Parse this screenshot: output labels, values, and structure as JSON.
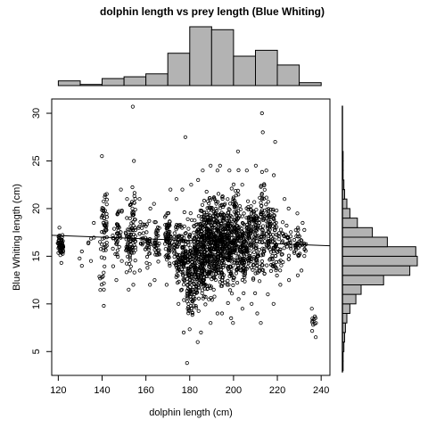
{
  "chart_data": {
    "type": "scatter",
    "title": "dolphin length vs prey length (Blue Whiting)",
    "xlabel": "dolphin length (cm)",
    "ylabel": "Blue Whiting length (cm)",
    "xlim": [
      117,
      244
    ],
    "ylim": [
      2.5,
      31.5
    ],
    "xticks": [
      120,
      140,
      160,
      180,
      200,
      220,
      240
    ],
    "yticks": [
      5,
      10,
      15,
      20,
      25,
      30
    ],
    "grid": false,
    "trend_line": {
      "x": [
        117,
        244
      ],
      "y": [
        17.2,
        16.1
      ]
    },
    "point_style": "open-circle",
    "point_clusters": [
      {
        "x": 121,
        "y_range": [
          14.3,
          18.0
        ],
        "n": 60
      },
      {
        "x": 130,
        "y_range": [
          14.0,
          15.5
        ],
        "n": 3
      },
      {
        "x": 135,
        "y_range": [
          14.5,
          18.5
        ],
        "n": 6
      },
      {
        "x": 140,
        "y_range": [
          9.8,
          18.5
        ],
        "n": 16
      },
      {
        "x": 141,
        "y_range": [
          11.5,
          25.5
        ],
        "n": 45
      },
      {
        "x": 146,
        "y_range": [
          12.5,
          19.5
        ],
        "n": 18
      },
      {
        "x": 148,
        "y_range": [
          14.5,
          22.0
        ],
        "n": 26
      },
      {
        "x": 152,
        "y_range": [
          11.5,
          21.0
        ],
        "n": 45
      },
      {
        "x": 154,
        "y_range": [
          12.0,
          25.0
        ],
        "n": 55
      },
      {
        "x": 158,
        "y_range": [
          13.5,
          21.0
        ],
        "n": 18
      },
      {
        "x": 161,
        "y_range": [
          12.0,
          20.0
        ],
        "n": 30
      },
      {
        "x": 165,
        "y_range": [
          12.5,
          20.5
        ],
        "n": 35
      },
      {
        "x": 170,
        "y_range": [
          12.0,
          22.0
        ],
        "n": 70
      },
      {
        "x": 174,
        "y_range": [
          10.0,
          21.0
        ],
        "n": 60
      },
      {
        "x": 177,
        "y_range": [
          7.0,
          22.0
        ],
        "n": 75
      },
      {
        "x": 180,
        "y_range": [
          3.8,
          22.5
        ],
        "n": 110
      },
      {
        "x": 183,
        "y_range": [
          6.0,
          23.0
        ],
        "n": 130
      },
      {
        "x": 186,
        "y_range": [
          7.0,
          24.0
        ],
        "n": 150
      },
      {
        "x": 189,
        "y_range": [
          8.0,
          24.5
        ],
        "n": 160
      },
      {
        "x": 192,
        "y_range": [
          9.0,
          24.0
        ],
        "n": 150
      },
      {
        "x": 195,
        "y_range": [
          9.0,
          24.5
        ],
        "n": 140
      },
      {
        "x": 198,
        "y_range": [
          8.5,
          24.0
        ],
        "n": 130
      },
      {
        "x": 201,
        "y_range": [
          8.0,
          26.0
        ],
        "n": 115
      },
      {
        "x": 204,
        "y_range": [
          9.5,
          22.5
        ],
        "n": 95
      },
      {
        "x": 207,
        "y_range": [
          10.0,
          24.0
        ],
        "n": 80
      },
      {
        "x": 210,
        "y_range": [
          9.0,
          24.5
        ],
        "n": 75
      },
      {
        "x": 213,
        "y_range": [
          8.0,
          28.0
        ],
        "n": 70
      },
      {
        "x": 216,
        "y_range": [
          11.0,
          24.0
        ],
        "n": 55
      },
      {
        "x": 219,
        "y_range": [
          10.0,
          23.5
        ],
        "n": 50
      },
      {
        "x": 222,
        "y_range": [
          12.0,
          21.0
        ],
        "n": 25
      },
      {
        "x": 225,
        "y_range": [
          12.5,
          20.0
        ],
        "n": 22
      },
      {
        "x": 229,
        "y_range": [
          13.0,
          19.5
        ],
        "n": 30
      },
      {
        "x": 232,
        "y_range": [
          13.5,
          18.5
        ],
        "n": 14
      },
      {
        "x": 237,
        "y_range": [
          6.5,
          9.5
        ],
        "n": 12
      }
    ],
    "outliers": [
      {
        "x": 154,
        "y": 30.7
      },
      {
        "x": 213,
        "y": 30.0
      },
      {
        "x": 178,
        "y": 27.5
      },
      {
        "x": 219,
        "y": 27.0
      }
    ],
    "top_histogram": {
      "bins": [
        [
          120,
          130
        ],
        [
          130,
          140
        ],
        [
          140,
          150
        ],
        [
          150,
          160
        ],
        [
          160,
          170
        ],
        [
          170,
          180
        ],
        [
          180,
          190
        ],
        [
          190,
          200
        ],
        [
          200,
          210
        ],
        [
          210,
          220
        ],
        [
          220,
          230
        ],
        [
          230,
          240
        ]
      ],
      "counts": [
        8,
        2,
        12,
        15,
        20,
        55,
        100,
        95,
        50,
        60,
        35,
        5
      ]
    },
    "right_histogram": {
      "bins": [
        [
          3,
          4
        ],
        [
          4,
          5
        ],
        [
          5,
          6
        ],
        [
          6,
          7
        ],
        [
          7,
          8
        ],
        [
          8,
          9
        ],
        [
          9,
          10
        ],
        [
          10,
          11
        ],
        [
          11,
          12
        ],
        [
          12,
          13
        ],
        [
          13,
          14
        ],
        [
          14,
          15
        ],
        [
          15,
          16
        ],
        [
          16,
          17
        ],
        [
          17,
          18
        ],
        [
          18,
          19
        ],
        [
          19,
          20
        ],
        [
          20,
          21
        ],
        [
          21,
          22
        ],
        [
          22,
          23
        ],
        [
          23,
          24
        ],
        [
          24,
          25
        ],
        [
          25,
          26
        ],
        [
          26,
          27
        ],
        [
          27,
          28
        ],
        [
          28,
          29
        ],
        [
          29,
          30
        ],
        [
          30,
          31
        ]
      ],
      "counts": [
        1,
        1,
        2,
        3,
        4,
        6,
        10,
        18,
        25,
        55,
        90,
        100,
        98,
        60,
        40,
        20,
        10,
        6,
        3,
        2,
        1,
        1,
        1,
        0,
        0,
        0,
        0,
        0
      ]
    }
  }
}
